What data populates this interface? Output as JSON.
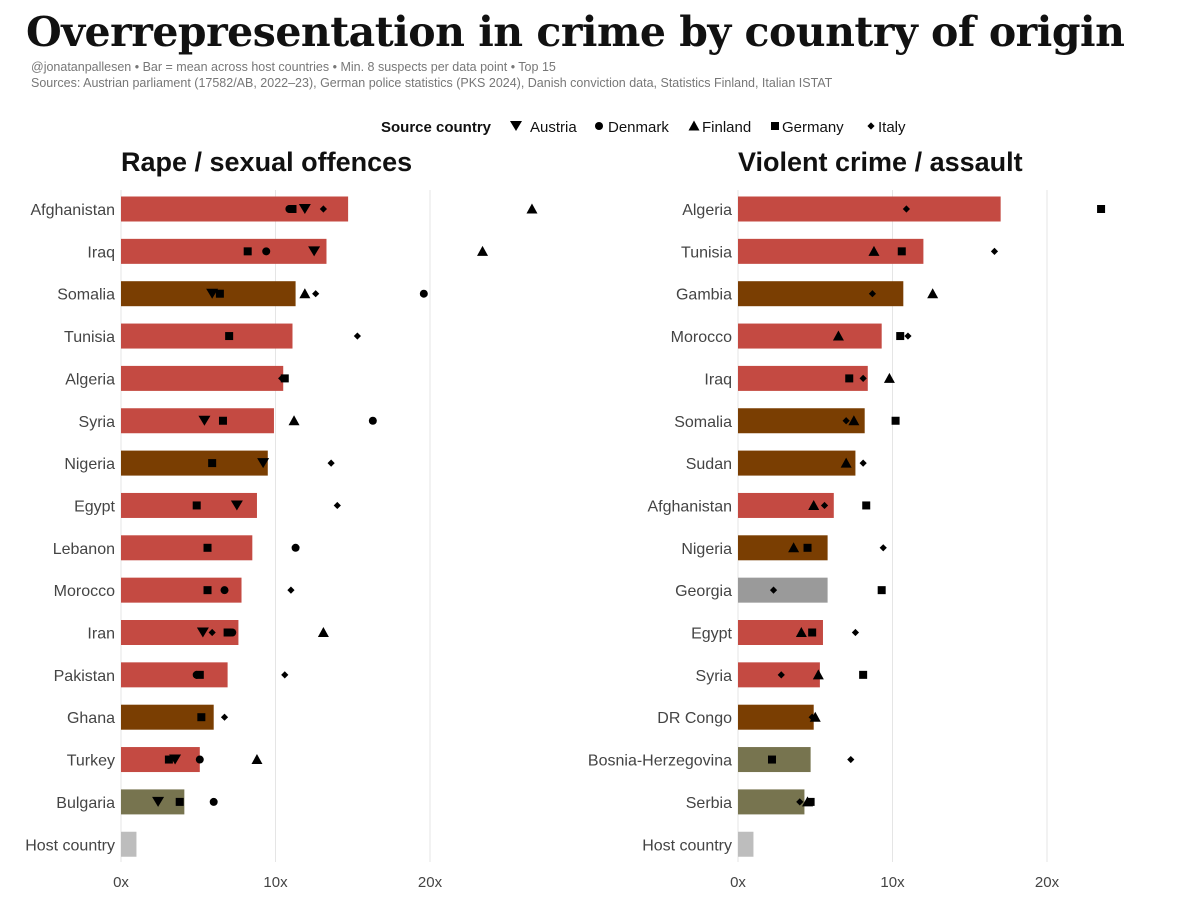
{
  "title": "Overrepresentation in crime by country of origin",
  "subtitle": "@jonatanpallesen • Bar = mean across host countries • Min. 8 suspects per data point • Top 15",
  "sources": "Sources: Austrian parliament (17582/AB, 2022–23), German police statistics (PKS 2024), Danish conviction data, Statistics Finland, Italian ISTAT",
  "legend": {
    "title": "Source country",
    "items": [
      {
        "name": "Austria",
        "shape": "triangle-down"
      },
      {
        "name": "Denmark",
        "shape": "circle"
      },
      {
        "name": "Finland",
        "shape": "triangle-up"
      },
      {
        "name": "Germany",
        "shape": "square"
      },
      {
        "name": "Italy",
        "shape": "diamond"
      }
    ]
  },
  "colors": {
    "middle_east_north_africa": "#c44a42",
    "sub_saharan_africa": "#7a3e02",
    "balkans": "#77744f",
    "other": "#9a9a9a",
    "host": "#bdbdbd",
    "marker": "#000000"
  },
  "chart_data": [
    {
      "type": "bar",
      "title": "Rape / sexual offences",
      "xlim": [
        0,
        27
      ],
      "xticks": [
        0,
        10,
        20
      ],
      "xtick_labels": [
        "0x",
        "10x",
        "20x"
      ],
      "grid": true,
      "categories": [
        "Afghanistan",
        "Iraq",
        "Somalia",
        "Tunisia",
        "Algeria",
        "Syria",
        "Nigeria",
        "Egypt",
        "Lebanon",
        "Morocco",
        "Iran",
        "Pakistan",
        "Ghana",
        "Turkey",
        "Bulgaria",
        "Host country"
      ],
      "bar_colors": [
        "middle_east_north_africa",
        "middle_east_north_africa",
        "sub_saharan_africa",
        "middle_east_north_africa",
        "middle_east_north_africa",
        "middle_east_north_africa",
        "sub_saharan_africa",
        "middle_east_north_africa",
        "middle_east_north_africa",
        "middle_east_north_africa",
        "middle_east_north_africa",
        "middle_east_north_africa",
        "sub_saharan_africa",
        "middle_east_north_africa",
        "balkans",
        "host"
      ],
      "values": [
        14.7,
        13.3,
        11.3,
        11.1,
        10.5,
        9.9,
        9.5,
        8.8,
        8.5,
        7.8,
        7.6,
        6.9,
        6.0,
        5.1,
        4.1,
        1.0
      ],
      "series": [
        {
          "name": "Austria",
          "values": [
            11.9,
            12.5,
            5.9,
            null,
            null,
            5.4,
            9.2,
            7.5,
            null,
            null,
            5.3,
            null,
            null,
            3.5,
            2.4,
            null
          ]
        },
        {
          "name": "Denmark",
          "values": [
            10.9,
            9.4,
            19.6,
            null,
            null,
            16.3,
            null,
            null,
            11.3,
            6.7,
            7.2,
            4.9,
            null,
            5.1,
            6.0,
            null
          ]
        },
        {
          "name": "Finland",
          "values": [
            26.6,
            23.4,
            11.9,
            null,
            null,
            11.2,
            null,
            null,
            null,
            null,
            13.1,
            null,
            null,
            8.8,
            null,
            null
          ]
        },
        {
          "name": "Germany",
          "values": [
            11.1,
            8.2,
            6.4,
            7.0,
            10.6,
            6.6,
            5.9,
            4.9,
            5.6,
            5.6,
            6.9,
            5.1,
            5.2,
            3.1,
            3.8,
            null
          ]
        },
        {
          "name": "Italy",
          "values": [
            13.1,
            null,
            12.6,
            15.3,
            10.4,
            null,
            13.6,
            14.0,
            null,
            11.0,
            5.9,
            10.6,
            6.7,
            null,
            null,
            null
          ]
        }
      ]
    },
    {
      "type": "bar",
      "title": "Violent crime / assault",
      "xlim": [
        0,
        27
      ],
      "xticks": [
        0,
        10,
        20
      ],
      "xtick_labels": [
        "0x",
        "10x",
        "20x"
      ],
      "grid": true,
      "categories": [
        "Algeria",
        "Tunisia",
        "Gambia",
        "Morocco",
        "Iraq",
        "Somalia",
        "Sudan",
        "Afghanistan",
        "Nigeria",
        "Georgia",
        "Egypt",
        "Syria",
        "DR Congo",
        "Bosnia-Herzegovina",
        "Serbia",
        "Host country"
      ],
      "bar_colors": [
        "middle_east_north_africa",
        "middle_east_north_africa",
        "sub_saharan_africa",
        "middle_east_north_africa",
        "middle_east_north_africa",
        "sub_saharan_africa",
        "sub_saharan_africa",
        "middle_east_north_africa",
        "sub_saharan_africa",
        "other",
        "middle_east_north_africa",
        "middle_east_north_africa",
        "sub_saharan_africa",
        "balkans",
        "balkans",
        "host"
      ],
      "values": [
        17.0,
        12.0,
        10.7,
        9.3,
        8.4,
        8.2,
        7.6,
        6.2,
        5.8,
        5.8,
        5.5,
        5.3,
        4.9,
        4.7,
        4.3,
        1.0
      ],
      "series": [
        {
          "name": "Austria",
          "values": [
            null,
            null,
            null,
            null,
            null,
            null,
            null,
            null,
            null,
            null,
            null,
            null,
            null,
            null,
            null,
            null
          ]
        },
        {
          "name": "Denmark",
          "values": [
            null,
            null,
            null,
            null,
            null,
            null,
            null,
            null,
            null,
            null,
            null,
            null,
            null,
            null,
            null,
            null
          ]
        },
        {
          "name": "Finland",
          "values": [
            null,
            8.8,
            12.6,
            6.5,
            9.8,
            7.5,
            7.0,
            4.9,
            3.6,
            null,
            4.1,
            5.2,
            5.0,
            null,
            4.5,
            null
          ]
        },
        {
          "name": "Germany",
          "values": [
            23.5,
            10.6,
            null,
            10.5,
            7.2,
            10.2,
            null,
            8.3,
            4.5,
            9.3,
            4.8,
            8.1,
            null,
            2.2,
            4.7,
            null
          ]
        },
        {
          "name": "Italy",
          "values": [
            10.9,
            16.6,
            8.7,
            11.0,
            8.1,
            7.0,
            8.1,
            5.6,
            9.4,
            2.3,
            7.6,
            2.8,
            4.8,
            7.3,
            4.0,
            null
          ]
        }
      ]
    }
  ]
}
